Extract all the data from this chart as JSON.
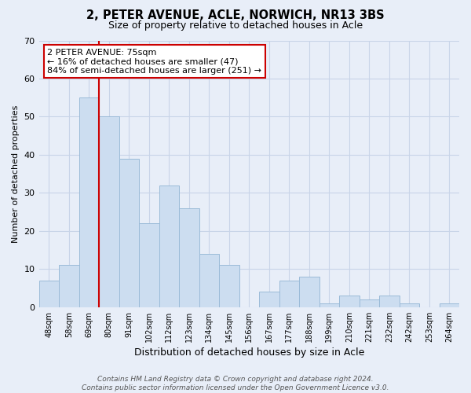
{
  "title": "2, PETER AVENUE, ACLE, NORWICH, NR13 3BS",
  "subtitle": "Size of property relative to detached houses in Acle",
  "xlabel": "Distribution of detached houses by size in Acle",
  "ylabel": "Number of detached properties",
  "categories": [
    "48sqm",
    "58sqm",
    "69sqm",
    "80sqm",
    "91sqm",
    "102sqm",
    "112sqm",
    "123sqm",
    "134sqm",
    "145sqm",
    "156sqm",
    "167sqm",
    "177sqm",
    "188sqm",
    "199sqm",
    "210sqm",
    "221sqm",
    "232sqm",
    "242sqm",
    "253sqm",
    "264sqm"
  ],
  "values": [
    7,
    11,
    55,
    50,
    39,
    22,
    32,
    26,
    14,
    11,
    0,
    4,
    7,
    8,
    1,
    3,
    2,
    3,
    1,
    0,
    1
  ],
  "bar_color": "#ccddf0",
  "bar_edge_color": "#9bbbd8",
  "vline_x": 2.5,
  "vline_color": "#cc0000",
  "ylim": [
    0,
    70
  ],
  "yticks": [
    0,
    10,
    20,
    30,
    40,
    50,
    60,
    70
  ],
  "annotation_line1": "2 PETER AVENUE: 75sqm",
  "annotation_line2": "← 16% of detached houses are smaller (47)",
  "annotation_line3": "84% of semi-detached houses are larger (251) →",
  "annotation_box_color": "#ffffff",
  "annotation_box_edge": "#cc0000",
  "footer_text": "Contains HM Land Registry data © Crown copyright and database right 2024.\nContains public sector information licensed under the Open Government Licence v3.0.",
  "background_color": "#e8eef8",
  "grid_color": "#c8d4e8",
  "title_fontsize": 10.5,
  "subtitle_fontsize": 9
}
